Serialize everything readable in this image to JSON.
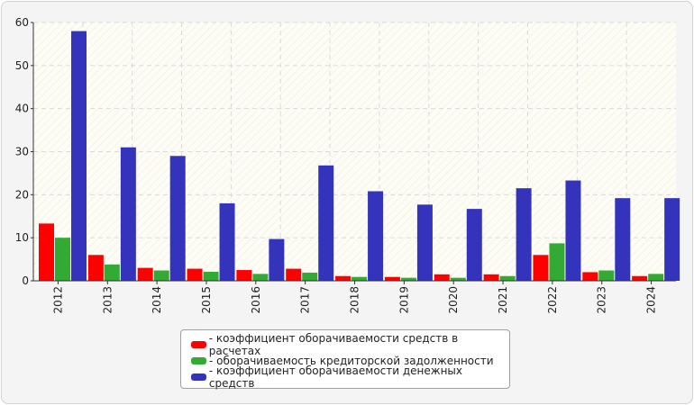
{
  "chart_data": {
    "type": "bar",
    "categories": [
      "2012",
      "2013",
      "2014",
      "2015",
      "2016",
      "2017",
      "2018",
      "2019",
      "2020",
      "2021",
      "2022",
      "2023",
      "2024"
    ],
    "series": [
      {
        "name": "- коэффициент оборачиваемости средств в расчетах",
        "color": "#ff0000",
        "values": [
          13.3,
          6.0,
          3.0,
          2.8,
          2.5,
          2.8,
          1.1,
          0.9,
          1.5,
          1.5,
          6.0,
          2.0,
          1.1
        ]
      },
      {
        "name": "- оборачиваемость кредиторской задолженности",
        "color": "#33aa33",
        "values": [
          10.0,
          3.8,
          2.4,
          2.1,
          1.6,
          1.9,
          0.9,
          0.7,
          0.7,
          1.1,
          8.7,
          2.4,
          1.6
        ]
      },
      {
        "name": "- коэффициент оборачиваемости денежных средств",
        "color": "#3333bb",
        "values": [
          58.0,
          31.0,
          29.0,
          18.0,
          9.7,
          26.8,
          20.8,
          17.7,
          16.7,
          21.5,
          23.3,
          19.2,
          19.2
        ]
      }
    ],
    "yticks": [
      "0",
      "10",
      "20",
      "30",
      "40",
      "50",
      "60"
    ],
    "ylim": [
      0,
      60
    ],
    "grid": true,
    "legend_position": "bottom-center"
  }
}
